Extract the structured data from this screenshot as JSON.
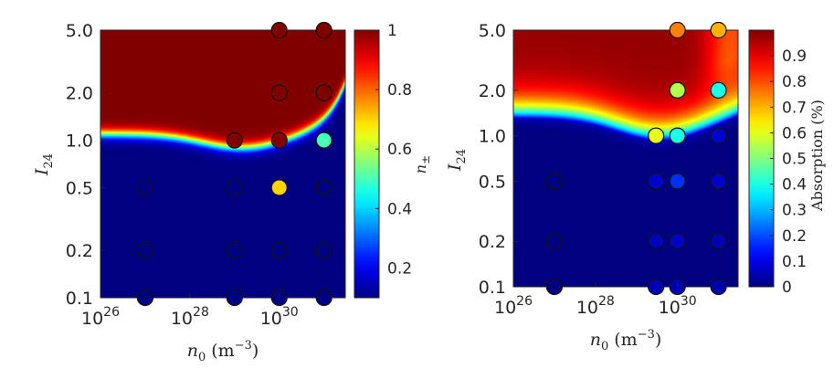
{
  "chart_data": [
    {
      "type": "heatmap",
      "xlabel": "n0 (m^-3)",
      "xlabel_parts": {
        "symbol": "n",
        "sub": "0",
        "unit": " (m",
        "sup": "−3",
        "close": ")"
      },
      "ylabel_parts": {
        "symbol": "I",
        "sub": "24"
      },
      "x_scale": "log",
      "y_scale": "log",
      "xlim": [
        1e+26,
        3e+31
      ],
      "ylim": [
        0.1,
        5.0
      ],
      "x_ticks": [
        {
          "value": 1e+26,
          "base": "10",
          "exp": "26"
        },
        {
          "value": 1e+28,
          "base": "10",
          "exp": "28"
        },
        {
          "value": 1e+30,
          "base": "10",
          "exp": "30"
        }
      ],
      "y_ticks": [
        {
          "value": 0.1,
          "label": "0.1"
        },
        {
          "value": 0.2,
          "label": "0.2"
        },
        {
          "value": 0.5,
          "label": "0.5"
        },
        {
          "value": 1.0,
          "label": "1.0"
        },
        {
          "value": 2.0,
          "label": "2.0"
        },
        {
          "value": 5.0,
          "label": "5.0"
        }
      ],
      "colorbar": {
        "label_symbol": "n",
        "label_sub": "±",
        "range": [
          0.1,
          1.0
        ],
        "ticks": [
          {
            "value": 0.2,
            "label": "0.2"
          },
          {
            "value": 0.4,
            "label": "0.4"
          },
          {
            "value": 0.6,
            "label": "0.6"
          },
          {
            "value": 0.8,
            "label": "0.8"
          },
          {
            "value": 1.0,
            "label": "1"
          }
        ]
      },
      "field": {
        "description_free": true,
        "boundary_base": 1.1,
        "transition_width": 0.02
      },
      "points": [
        {
          "x": 1e+27,
          "y": 0.1,
          "value": 0.1
        },
        {
          "x": 1e+27,
          "y": 0.2,
          "value": 0.1
        },
        {
          "x": 1e+27,
          "y": 0.5,
          "value": 0.1
        },
        {
          "x": 1e+29,
          "y": 0.1,
          "value": 0.1
        },
        {
          "x": 1e+29,
          "y": 0.2,
          "value": 0.1
        },
        {
          "x": 1e+29,
          "y": 0.5,
          "value": 0.1
        },
        {
          "x": 1e+29,
          "y": 1.0,
          "value": 1.0
        },
        {
          "x": 1e+30,
          "y": 0.1,
          "value": 0.1
        },
        {
          "x": 1e+30,
          "y": 0.2,
          "value": 0.1
        },
        {
          "x": 1e+30,
          "y": 0.5,
          "value": 0.7
        },
        {
          "x": 1e+30,
          "y": 1.0,
          "value": 1.0
        },
        {
          "x": 1e+30,
          "y": 2.0,
          "value": 1.0
        },
        {
          "x": 1e+30,
          "y": 5.0,
          "value": 1.0
        },
        {
          "x": 1e+31,
          "y": 0.1,
          "value": 0.1
        },
        {
          "x": 1e+31,
          "y": 0.2,
          "value": 0.1
        },
        {
          "x": 1e+31,
          "y": 0.5,
          "value": 0.1
        },
        {
          "x": 1e+31,
          "y": 1.0,
          "value": 0.5
        },
        {
          "x": 1e+31,
          "y": 2.0,
          "value": 1.0
        },
        {
          "x": 1e+31,
          "y": 5.0,
          "value": 1.0
        }
      ]
    },
    {
      "type": "heatmap",
      "xlabel_parts": {
        "symbol": "n",
        "sub": "0",
        "unit": " (m",
        "sup": "−3",
        "close": ")"
      },
      "ylabel_parts": {
        "symbol": "I",
        "sub": "24"
      },
      "x_scale": "log",
      "y_scale": "log",
      "xlim": [
        1e+26,
        3e+31
      ],
      "ylim": [
        0.1,
        5.0
      ],
      "x_ticks": [
        {
          "value": 1e+26,
          "base": "10",
          "exp": "26"
        },
        {
          "value": 1e+28,
          "base": "10",
          "exp": "28"
        },
        {
          "value": 1e+30,
          "base": "10",
          "exp": "30"
        }
      ],
      "y_ticks": [
        {
          "value": 0.1,
          "label": "0.1"
        },
        {
          "value": 0.2,
          "label": "0.2"
        },
        {
          "value": 0.5,
          "label": "0.5"
        },
        {
          "value": 1.0,
          "label": "1.0"
        },
        {
          "value": 2.0,
          "label": "2.0"
        },
        {
          "value": 5.0,
          "label": "5.0"
        }
      ],
      "colorbar": {
        "label": "Absorption (%)",
        "range": [
          0.0,
          1.0
        ],
        "ticks": [
          {
            "value": 0.0,
            "label": "0"
          },
          {
            "value": 0.1,
            "label": "0.1"
          },
          {
            "value": 0.2,
            "label": "0.2"
          },
          {
            "value": 0.3,
            "label": "0.3"
          },
          {
            "value": 0.4,
            "label": "0.4"
          },
          {
            "value": 0.5,
            "label": "0.5"
          },
          {
            "value": 0.6,
            "label": "0.6"
          },
          {
            "value": 0.7,
            "label": "0.7"
          },
          {
            "value": 0.8,
            "label": "0.8"
          },
          {
            "value": 0.9,
            "label": "0.9"
          }
        ]
      },
      "field": {
        "boundary_base": 1.3,
        "transition_width": 0.1
      },
      "points": [
        {
          "x": 1e+27,
          "y": 0.1,
          "value": 0.0
        },
        {
          "x": 1e+27,
          "y": 0.2,
          "value": 0.0
        },
        {
          "x": 1e+27,
          "y": 0.5,
          "value": 0.0
        },
        {
          "x": 3e+29,
          "y": 0.1,
          "value": 0.05
        },
        {
          "x": 3e+29,
          "y": 0.2,
          "value": 0.06
        },
        {
          "x": 3e+29,
          "y": 0.5,
          "value": 0.08
        },
        {
          "x": 3e+29,
          "y": 1.0,
          "value": 0.6
        },
        {
          "x": 1e+30,
          "y": 0.1,
          "value": 0.05
        },
        {
          "x": 1e+30,
          "y": 0.2,
          "value": 0.07
        },
        {
          "x": 1e+30,
          "y": 0.5,
          "value": 0.17
        },
        {
          "x": 1e+30,
          "y": 1.0,
          "value": 0.4
        },
        {
          "x": 1e+30,
          "y": 2.0,
          "value": 0.55
        },
        {
          "x": 1e+30,
          "y": 5.0,
          "value": 0.75
        },
        {
          "x": 1e+31,
          "y": 0.1,
          "value": 0.04
        },
        {
          "x": 1e+31,
          "y": 0.2,
          "value": 0.05
        },
        {
          "x": 1e+31,
          "y": 0.5,
          "value": 0.07
        },
        {
          "x": 1e+31,
          "y": 1.0,
          "value": 0.08
        },
        {
          "x": 1e+31,
          "y": 2.0,
          "value": 0.4
        },
        {
          "x": 1e+31,
          "y": 5.0,
          "value": 0.7
        }
      ]
    }
  ]
}
